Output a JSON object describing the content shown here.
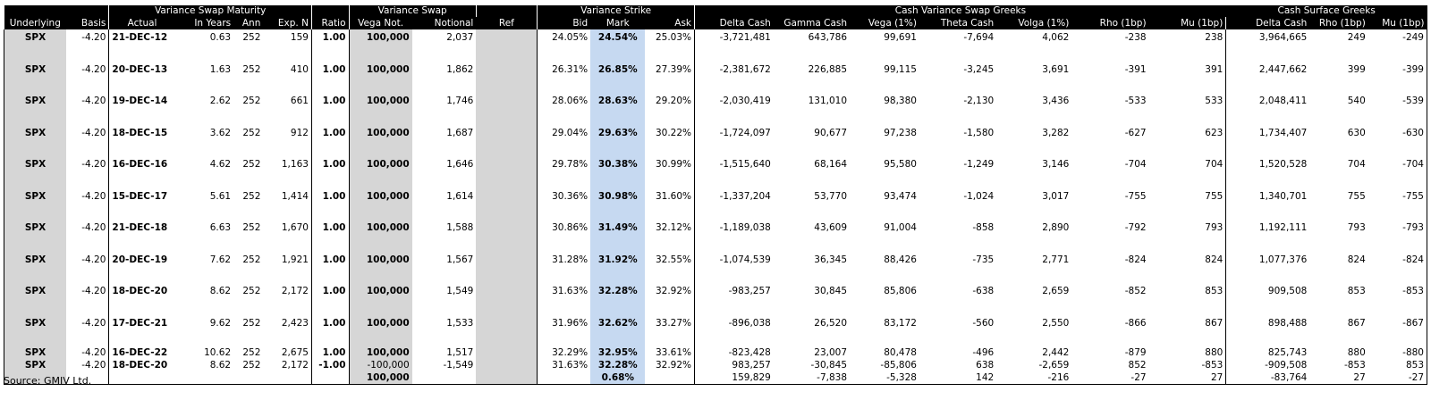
{
  "group_headers": [
    {
      "label": "",
      "span": 2
    },
    {
      "label": "Variance Swap Maturity",
      "span": 4
    },
    {
      "label": "",
      "span": 1
    },
    {
      "label": "Variance Swap",
      "span": 2
    },
    {
      "label": "",
      "span": 1
    },
    {
      "label": "Variance Strike",
      "span": 3
    },
    {
      "label": "Cash Variance Swap Greeks",
      "span": 7
    },
    {
      "label": "Cash Surface Greeks",
      "span": 3
    }
  ],
  "column_headers": [
    "Underlying",
    "Basis",
    "Actual",
    "In Years",
    "Ann",
    "Exp. N",
    "Ratio",
    "Vega Not.",
    "Notional",
    "Ref",
    "Bid",
    "Mark",
    "Ask",
    "Delta Cash",
    "Gamma Cash",
    "Vega (1%)",
    "Theta Cash",
    "Volga (1%)",
    "Rho (1bp)",
    "Mu (1bp)",
    "Delta Cash",
    "Rho (1bp)",
    "Mu (1bp)"
  ],
  "rows": [
    [
      "SPX",
      "-4.20",
      "21-DEC-12",
      "0.63",
      "252",
      "159",
      "1.00",
      "100,000",
      "2,037",
      "",
      "24.05%",
      "24.54%",
      "25.03%",
      "-3,721,481",
      "643,786",
      "99,691",
      "-7,694",
      "4,062",
      "-238",
      "238",
      "3,964,665",
      "249",
      "-249"
    ],
    [
      "SPX",
      "-4.20",
      "20-DEC-13",
      "1.63",
      "252",
      "410",
      "1.00",
      "100,000",
      "1,862",
      "",
      "26.31%",
      "26.85%",
      "27.39%",
      "-2,381,672",
      "226,885",
      "99,115",
      "-3,245",
      "3,691",
      "-391",
      "391",
      "2,447,662",
      "399",
      "-399"
    ],
    [
      "SPX",
      "-4.20",
      "19-DEC-14",
      "2.62",
      "252",
      "661",
      "1.00",
      "100,000",
      "1,746",
      "",
      "28.06%",
      "28.63%",
      "29.20%",
      "-2,030,419",
      "131,010",
      "98,380",
      "-2,130",
      "3,436",
      "-533",
      "533",
      "2,048,411",
      "540",
      "-539"
    ],
    [
      "SPX",
      "-4.20",
      "18-DEC-15",
      "3.62",
      "252",
      "912",
      "1.00",
      "100,000",
      "1,687",
      "",
      "29.04%",
      "29.63%",
      "30.22%",
      "-1,724,097",
      "90,677",
      "97,238",
      "-1,580",
      "3,282",
      "-627",
      "623",
      "1,734,407",
      "630",
      "-630"
    ],
    [
      "SPX",
      "-4.20",
      "16-DEC-16",
      "4.62",
      "252",
      "1,163",
      "1.00",
      "100,000",
      "1,646",
      "",
      "29.78%",
      "30.38%",
      "30.99%",
      "-1,515,640",
      "68,164",
      "95,580",
      "-1,249",
      "3,146",
      "-704",
      "704",
      "1,520,528",
      "704",
      "-704"
    ],
    [
      "SPX",
      "-4.20",
      "15-DEC-17",
      "5.61",
      "252",
      "1,414",
      "1.00",
      "100,000",
      "1,614",
      "",
      "30.36%",
      "30.98%",
      "31.60%",
      "-1,337,204",
      "53,770",
      "93,474",
      "-1,024",
      "3,017",
      "-755",
      "755",
      "1,340,701",
      "755",
      "-755"
    ],
    [
      "SPX",
      "-4.20",
      "21-DEC-18",
      "6.63",
      "252",
      "1,670",
      "1.00",
      "100,000",
      "1,588",
      "",
      "30.86%",
      "31.49%",
      "32.12%",
      "-1,189,038",
      "43,609",
      "91,004",
      "-858",
      "2,890",
      "-792",
      "793",
      "1,192,111",
      "793",
      "-793"
    ],
    [
      "SPX",
      "-4.20",
      "20-DEC-19",
      "7.62",
      "252",
      "1,921",
      "1.00",
      "100,000",
      "1,567",
      "",
      "31.28%",
      "31.92%",
      "32.55%",
      "-1,074,539",
      "36,345",
      "88,426",
      "-735",
      "2,771",
      "-824",
      "824",
      "1,077,376",
      "824",
      "-824"
    ],
    [
      "SPX",
      "-4.20",
      "18-DEC-20",
      "8.62",
      "252",
      "2,172",
      "1.00",
      "100,000",
      "1,549",
      "",
      "31.63%",
      "32.28%",
      "32.92%",
      "-983,257",
      "30,845",
      "85,806",
      "-638",
      "2,659",
      "-852",
      "853",
      "909,508",
      "853",
      "-853"
    ],
    [
      "SPX",
      "-4.20",
      "17-DEC-21",
      "9.62",
      "252",
      "2,423",
      "1.00",
      "100,000",
      "1,533",
      "",
      "31.96%",
      "32.62%",
      "33.27%",
      "-896,038",
      "26,520",
      "83,172",
      "-560",
      "2,550",
      "-866",
      "867",
      "898,488",
      "867",
      "-867"
    ]
  ],
  "tail_rows": [
    [
      "SPX",
      "-4.20",
      "16-DEC-22",
      "10.62",
      "252",
      "2,675",
      "1.00",
      "100,000",
      "1,517",
      "",
      "32.29%",
      "32.95%",
      "33.61%",
      "-823,428",
      "23,007",
      "80,478",
      "-496",
      "2,442",
      "-879",
      "880",
      "825,743",
      "880",
      "-880"
    ],
    [
      "SPX",
      "-4.20",
      "18-DEC-20",
      "8.62",
      "252",
      "2,172",
      "-1.00",
      "-100,000",
      "-1,549",
      "",
      "31.63%",
      "32.28%",
      "32.92%",
      "983,257",
      "-30,845",
      "-85,806",
      "638",
      "-2,659",
      "852",
      "-853",
      "-909,508",
      "-853",
      "853"
    ]
  ],
  "total_row": {
    "vega_not": "100,000",
    "mark": "0.68%",
    "delta_cash": "159,829",
    "gamma_cash": "-7,838",
    "vega": "-5,328",
    "theta_cash": "142",
    "volga": "-216",
    "rho": "-27",
    "mu": "27",
    "surface_delta_cash": "-83,764",
    "surface_rho": "27",
    "surface_mu": "-27"
  },
  "source": "Source: GMIV Ltd.",
  "colors": {
    "header_bg": "#000000",
    "grey_fill": "#d6d6d6",
    "mark_fill": "#c6d9f1"
  }
}
